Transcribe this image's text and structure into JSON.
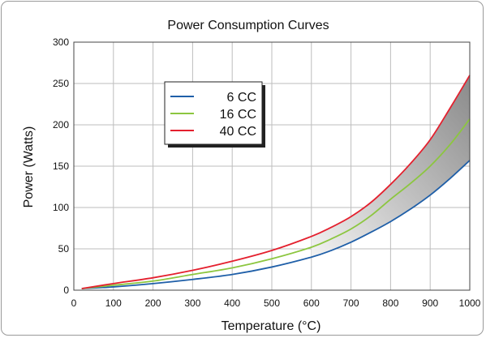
{
  "chart_data": {
    "type": "line",
    "title": "Power Consumption Curves",
    "xlabel": "Temperature (°C)",
    "ylabel": "Power (Watts)",
    "xlim": [
      0,
      1000
    ],
    "ylim": [
      0,
      300
    ],
    "xticks": [
      0,
      100,
      200,
      300,
      400,
      500,
      600,
      700,
      800,
      900,
      1000
    ],
    "yticks": [
      0,
      50,
      100,
      150,
      200,
      250,
      300
    ],
    "grid": true,
    "legend_position": "top-left",
    "shaded_band": {
      "between": [
        "6 CC",
        "40 CC"
      ],
      "from_x": 600,
      "color": "#9a9a9a"
    },
    "x": [
      20,
      100,
      200,
      300,
      400,
      500,
      600,
      650,
      700,
      750,
      800,
      850,
      900,
      950,
      1000
    ],
    "series": [
      {
        "name": "6 CC",
        "color": "#1f5fa8",
        "values": [
          2,
          4,
          8,
          13,
          19,
          28,
          40,
          48,
          58,
          70,
          83,
          98,
          115,
          135,
          157
        ]
      },
      {
        "name": "16 CC",
        "color": "#8cc63f",
        "values": [
          2,
          6,
          11,
          19,
          27,
          38,
          52,
          62,
          74,
          90,
          110,
          129,
          150,
          176,
          207
        ]
      },
      {
        "name": "40 CC",
        "color": "#e4202e",
        "values": [
          2,
          8,
          15,
          24,
          35,
          48,
          65,
          76,
          89,
          106,
          128,
          153,
          182,
          220,
          260
        ]
      }
    ]
  }
}
